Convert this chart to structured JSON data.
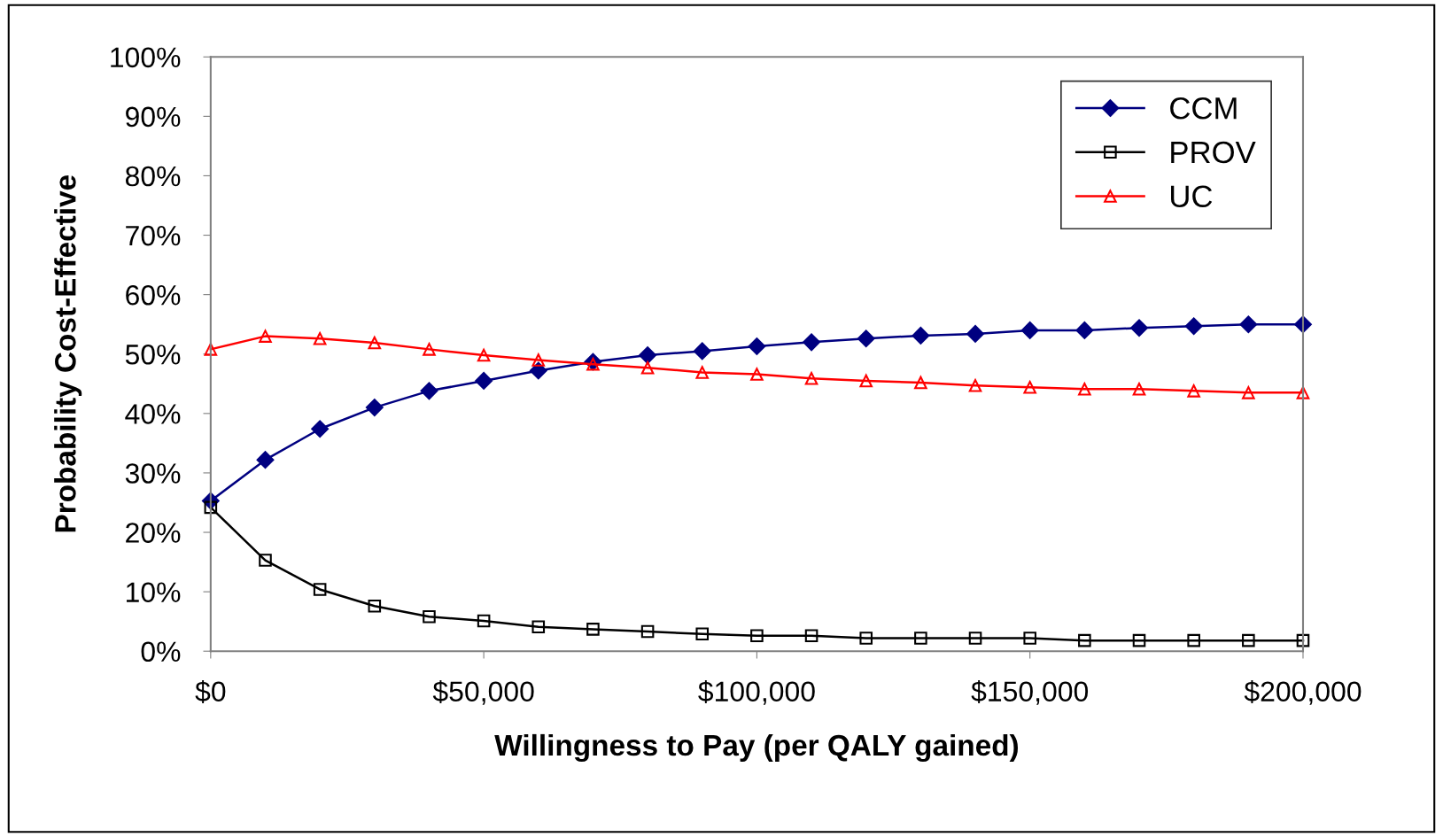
{
  "chart_data": {
    "type": "line",
    "xlabel": "Willingness to Pay (per QALY gained)",
    "ylabel": "Probability Cost-Effective",
    "x": [
      0,
      10000,
      20000,
      30000,
      40000,
      50000,
      60000,
      70000,
      80000,
      90000,
      100000,
      110000,
      120000,
      130000,
      140000,
      150000,
      160000,
      170000,
      180000,
      190000,
      200000
    ],
    "series": [
      {
        "name": "CCM",
        "color": "#000080",
        "marker": "diamond",
        "values": [
          25.3,
          32.2,
          37.4,
          41,
          43.8,
          45.5,
          47.2,
          48.7,
          49.8,
          50.5,
          51.3,
          52,
          52.6,
          53.1,
          53.4,
          54,
          54,
          54.4,
          54.7,
          55,
          55
        ]
      },
      {
        "name": "PROV",
        "color": "#000000",
        "marker": "square",
        "values": [
          24.2,
          15.3,
          10.4,
          7.6,
          5.8,
          5.1,
          4.1,
          3.7,
          3.3,
          2.9,
          2.6,
          2.6,
          2.2,
          2.2,
          2.2,
          2.2,
          1.8,
          1.8,
          1.8,
          1.8,
          1.8
        ]
      },
      {
        "name": "UC",
        "color": "#ff0000",
        "marker": "triangle",
        "values": [
          50.8,
          53,
          52.6,
          51.9,
          50.8,
          49.8,
          49,
          48.3,
          47.7,
          46.9,
          46.6,
          45.9,
          45.5,
          45.2,
          44.7,
          44.4,
          44.1,
          44.1,
          43.8,
          43.5,
          43.5
        ]
      }
    ],
    "xlim": [
      0,
      200000
    ],
    "xticks": [
      {
        "value": 0,
        "label": "$0"
      },
      {
        "value": 50000,
        "label": "$50,000"
      },
      {
        "value": 100000,
        "label": "$100,000"
      },
      {
        "value": 150000,
        "label": "$150,000"
      },
      {
        "value": 200000,
        "label": "$200,000"
      }
    ],
    "ylim": [
      0,
      100
    ],
    "yticks": [
      {
        "value": 0,
        "label": "0%"
      },
      {
        "value": 10,
        "label": "10%"
      },
      {
        "value": 20,
        "label": "20%"
      },
      {
        "value": 30,
        "label": "30%"
      },
      {
        "value": 40,
        "label": "40%"
      },
      {
        "value": 50,
        "label": "50%"
      },
      {
        "value": 60,
        "label": "60%"
      },
      {
        "value": 70,
        "label": "70%"
      },
      {
        "value": 80,
        "label": "80%"
      },
      {
        "value": 90,
        "label": "90%"
      },
      {
        "value": 100,
        "label": "100%"
      }
    ],
    "grid": false,
    "legend": "top right",
    "line_style": "solid"
  }
}
